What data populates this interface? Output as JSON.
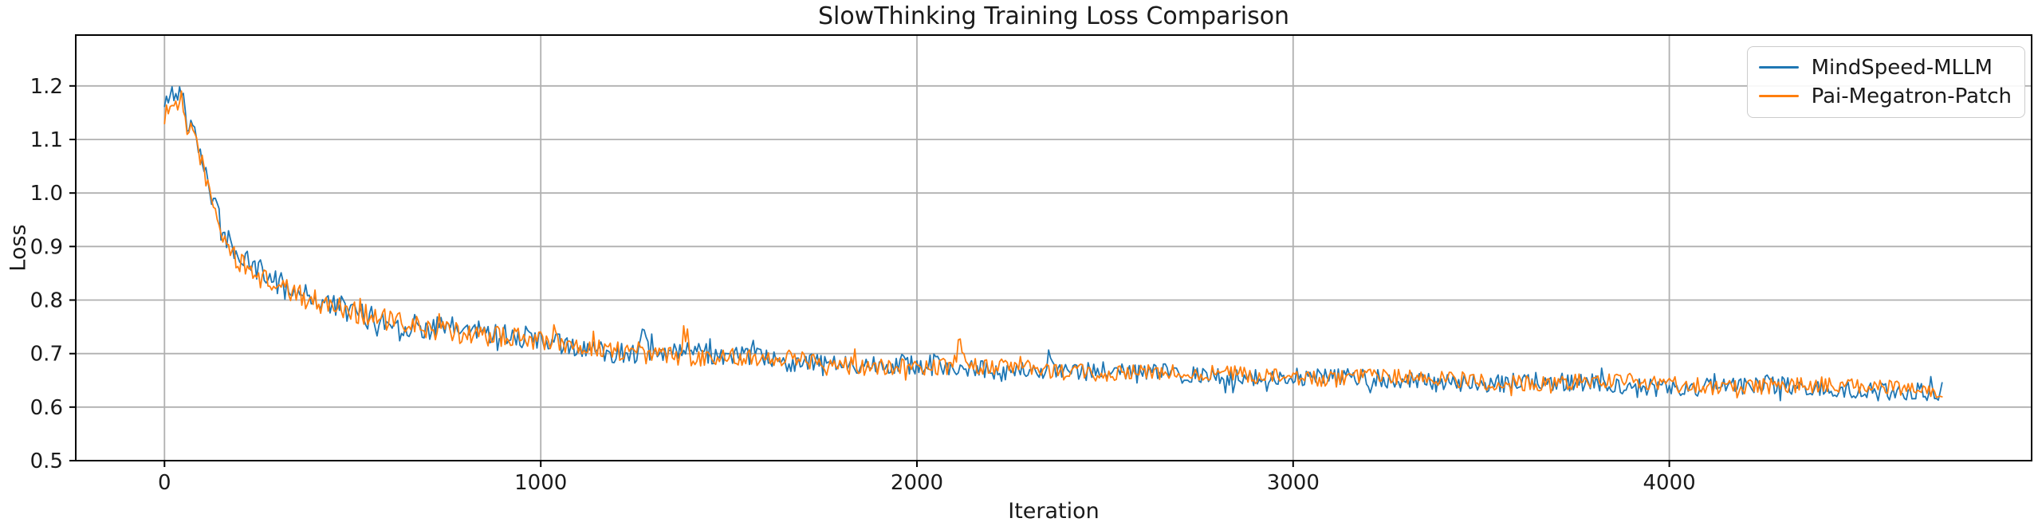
{
  "chart_data": {
    "type": "line",
    "title": "SlowThinking Training Loss Comparison",
    "xlabel": "Iteration",
    "ylabel": "Loss",
    "xlim": [
      -236,
      4963
    ],
    "ylim": [
      0.5,
      1.295
    ],
    "xticks": [
      0,
      1000,
      2000,
      3000,
      4000
    ],
    "yticks": [
      0.5,
      0.6,
      0.7,
      0.8,
      0.9,
      1.0,
      1.1,
      1.2
    ],
    "grid": true,
    "legend_position": "upper right",
    "x_start": 0,
    "x_end": 4725,
    "x_step": 5,
    "trend_points": [
      [
        0,
        1.14
      ],
      [
        15,
        1.17
      ],
      [
        30,
        1.155
      ],
      [
        45,
        1.175
      ],
      [
        60,
        1.105
      ],
      [
        75,
        1.125
      ],
      [
        90,
        1.085
      ],
      [
        110,
        1.03
      ],
      [
        130,
        0.975
      ],
      [
        160,
        0.915
      ],
      [
        200,
        0.872
      ],
      [
        250,
        0.848
      ],
      [
        300,
        0.827
      ],
      [
        350,
        0.81
      ],
      [
        400,
        0.796
      ],
      [
        450,
        0.786
      ],
      [
        500,
        0.776
      ],
      [
        600,
        0.759
      ],
      [
        700,
        0.749
      ],
      [
        800,
        0.741
      ],
      [
        900,
        0.732
      ],
      [
        1000,
        0.722
      ],
      [
        1100,
        0.712
      ],
      [
        1200,
        0.706
      ],
      [
        1300,
        0.701
      ],
      [
        1400,
        0.697
      ],
      [
        1500,
        0.693
      ],
      [
        1600,
        0.69
      ],
      [
        1700,
        0.687
      ],
      [
        1800,
        0.684
      ],
      [
        1900,
        0.681
      ],
      [
        2000,
        0.677
      ],
      [
        2200,
        0.672
      ],
      [
        2400,
        0.669
      ],
      [
        2600,
        0.664
      ],
      [
        2800,
        0.661
      ],
      [
        3000,
        0.657
      ],
      [
        3200,
        0.654
      ],
      [
        3400,
        0.651
      ],
      [
        3600,
        0.648
      ],
      [
        3800,
        0.646
      ],
      [
        4000,
        0.643
      ],
      [
        4200,
        0.641
      ],
      [
        4400,
        0.638
      ],
      [
        4600,
        0.635
      ],
      [
        4725,
        0.633
      ]
    ],
    "noise_amp_points": [
      [
        0,
        0.015
      ],
      [
        80,
        0.017
      ],
      [
        150,
        0.019
      ],
      [
        300,
        0.021
      ],
      [
        600,
        0.021
      ],
      [
        1000,
        0.019
      ],
      [
        1500,
        0.017
      ],
      [
        2500,
        0.016
      ],
      [
        4725,
        0.015
      ]
    ],
    "series": [
      {
        "name": "MindSpeed-MLLM",
        "color": "#1f77b4",
        "seed": 42,
        "noise_scale": 1.12,
        "offset_points": [
          [
            0,
            0.022
          ],
          [
            45,
            0.028
          ],
          [
            90,
            0.012
          ],
          [
            200,
            0.005
          ],
          [
            600,
            0.002
          ],
          [
            1500,
            0
          ],
          [
            2500,
            -0.002
          ],
          [
            4725,
            -0.004
          ]
        ],
        "spikes": [
          [
            1270,
            0.03
          ],
          [
            2350,
            0.025
          ]
        ]
      },
      {
        "name": "Pai-Megatron-Patch",
        "color": "#ff7f0e",
        "seed": 1234,
        "noise_scale": 1.0,
        "offset_points": [
          [
            0,
            0
          ],
          [
            4725,
            0
          ]
        ],
        "spikes": [
          [
            1385,
            0.058
          ],
          [
            2112,
            0.038
          ]
        ]
      }
    ]
  },
  "colors": {
    "background": "#ffffff",
    "grid": "#b0b0b0",
    "spine": "#000000",
    "tick": "#000000",
    "text": "#1a1a1a",
    "legend_border": "#cccccc"
  }
}
